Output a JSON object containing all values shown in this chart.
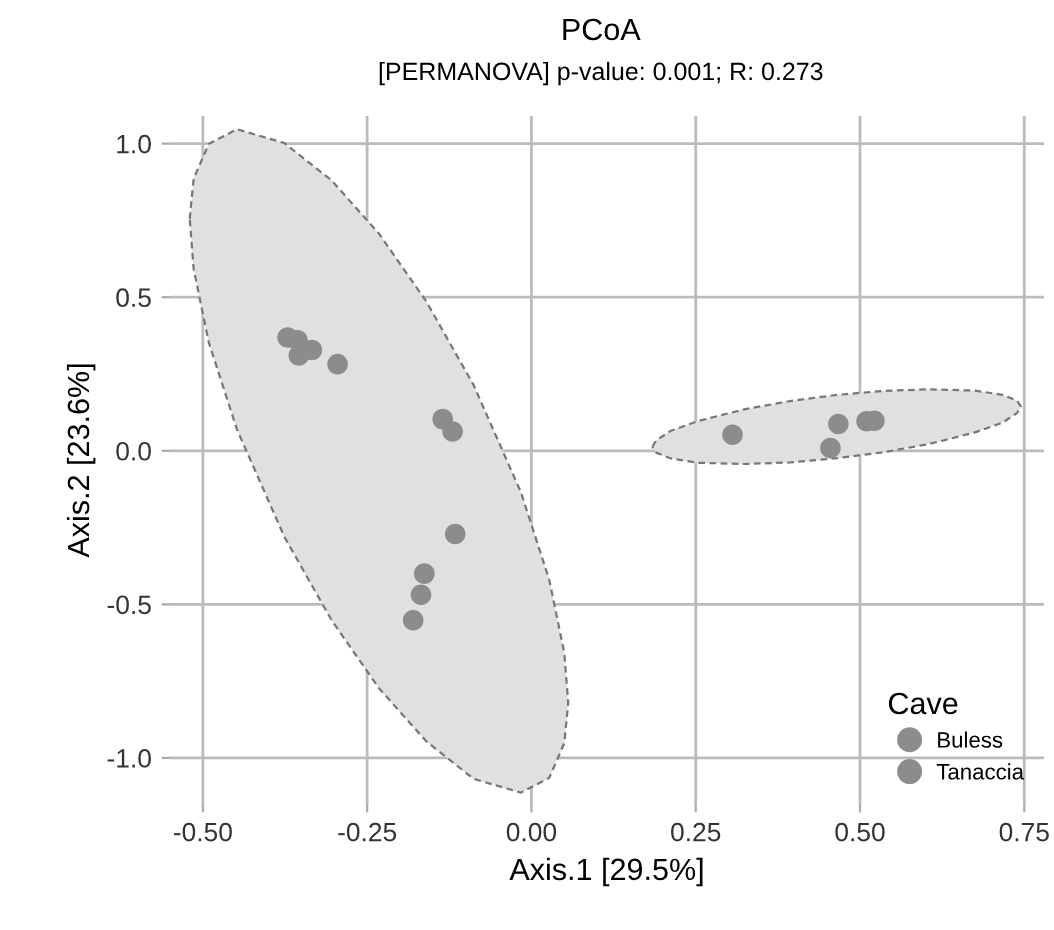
{
  "chart_data": {
    "type": "scatter",
    "title": "PCoA",
    "subtitle": "[PERMANOVA] p-value: 0.001; R: 0.273",
    "xlabel": "Axis.1 [29.5%]",
    "ylabel": "Axis.2 [23.6%]",
    "legend_title": "Cave",
    "legend": "bottom right",
    "grid": true,
    "marker": "circle",
    "xlim": [
      -0.55,
      0.78
    ],
    "ylim": [
      -1.15,
      1.09
    ],
    "xticks": [
      {
        "value": -0.5,
        "label": "-0.50"
      },
      {
        "value": -0.25,
        "label": "-0.25"
      },
      {
        "value": 0,
        "label": "0.00"
      },
      {
        "value": 0.25,
        "label": "0.25"
      },
      {
        "value": 0.5,
        "label": "0.50"
      },
      {
        "value": 0.75,
        "label": "0.75"
      }
    ],
    "yticks": [
      {
        "value": -1,
        "label": "-1.0"
      },
      {
        "value": -0.5,
        "label": "-0.5"
      },
      {
        "value": 0,
        "label": "0.0"
      },
      {
        "value": 0.5,
        "label": "0.5"
      },
      {
        "value": 1,
        "label": "1.0"
      }
    ],
    "series": [
      {
        "type": "area",
        "color": "#e0e0e0",
        "line_style": "dashed",
        "x": [
          -0.52,
          -0.514,
          -0.491,
          -0.448,
          -0.376,
          -0.304,
          -0.232,
          -0.16,
          -0.088,
          -0.016,
          0.027,
          0.05,
          0.056
        ],
        "values": [
          null,
          null,
          null,
          null,
          null,
          null,
          null,
          null,
          null,
          null,
          null,
          null,
          null
        ],
        "upper": [
          0.755,
          0.886,
          0.999,
          1.047,
          1.002,
          0.88,
          0.707,
          0.486,
          0.214,
          -0.135,
          -0.419,
          -0.658,
          -0.821
        ],
        "lower": [
          0.755,
          0.592,
          0.353,
          0.069,
          -0.28,
          -0.552,
          -0.773,
          -0.946,
          -1.068,
          -1.113,
          -1.065,
          -0.952,
          -0.821
        ]
      },
      {
        "type": "area",
        "color": "#e0e0e0",
        "line_style": "dashed",
        "x": [
          0.184,
          0.19,
          0.212,
          0.254,
          0.324,
          0.394,
          0.465,
          0.535,
          0.605,
          0.675,
          0.717,
          0.739,
          0.745
        ],
        "values": [
          null,
          null,
          null,
          null,
          null,
          null,
          null,
          null,
          null,
          null,
          null,
          null,
          null
        ],
        "upper": [
          0.013,
          0.034,
          0.065,
          0.097,
          0.135,
          0.162,
          0.182,
          0.195,
          0.2,
          0.196,
          0.182,
          0.163,
          0.144
        ],
        "lower": [
          0.013,
          -0.006,
          -0.025,
          -0.039,
          -0.043,
          -0.038,
          -0.024,
          -0.005,
          0.022,
          0.06,
          0.092,
          0.123,
          0.144
        ]
      },
      {
        "name": "Buless",
        "color": "#8c8c8c",
        "x": [
          -0.371,
          -0.356,
          -0.354,
          -0.334,
          -0.295,
          -0.135,
          -0.12,
          -0.116,
          -0.163,
          -0.168,
          -0.18
        ],
        "values": [
          0.369,
          0.36,
          0.31,
          0.328,
          0.282,
          0.103,
          0.063,
          -0.271,
          -0.4,
          -0.469,
          -0.552
        ]
      },
      {
        "name": "Tanaccia",
        "color": "#8c8c8c",
        "x": [
          0.306,
          0.467,
          0.455,
          0.51,
          0.522
        ],
        "values": [
          0.052,
          0.087,
          0.009,
          0.096,
          0.098
        ]
      }
    ]
  }
}
